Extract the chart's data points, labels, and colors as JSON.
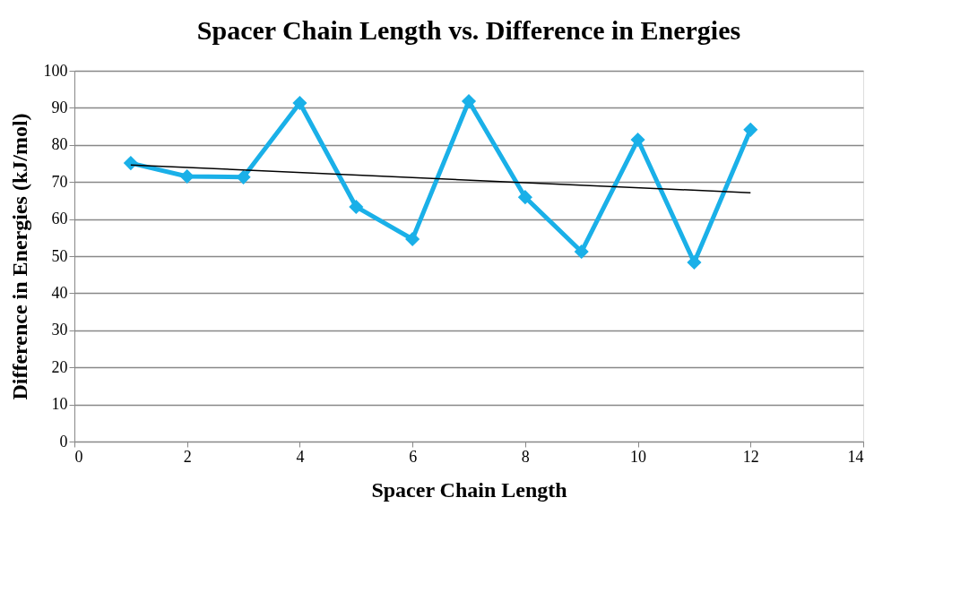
{
  "chart_data": {
    "type": "line",
    "title": "Spacer Chain Length vs. Difference in Energies",
    "xlabel": "Spacer Chain Length",
    "ylabel": "Difference in Energies (kJ/mol)",
    "x": [
      1,
      2,
      3,
      4,
      5,
      6,
      7,
      8,
      9,
      10,
      11,
      12
    ],
    "series": [
      {
        "color": "#1ab0e8",
        "values": [
          75.1,
          71.5,
          71.3,
          91.3,
          63.3,
          54.6,
          91.8,
          65.9,
          51.2,
          81.4,
          48.3,
          84.1
        ],
        "marker": "diamond",
        "line_style": "solid"
      },
      {
        "color": "#000000",
        "x": [
          1,
          12
        ],
        "values": [
          74.6,
          67.1
        ],
        "marker": "none",
        "line_style": "solid"
      }
    ],
    "xlim": [
      0,
      14
    ],
    "xticks": [
      0,
      2,
      4,
      6,
      8,
      10,
      12,
      14
    ],
    "ylim": [
      0,
      100
    ],
    "yticks": [
      0,
      10,
      20,
      30,
      40,
      50,
      60,
      70,
      80,
      90,
      100
    ],
    "grid": "y"
  }
}
